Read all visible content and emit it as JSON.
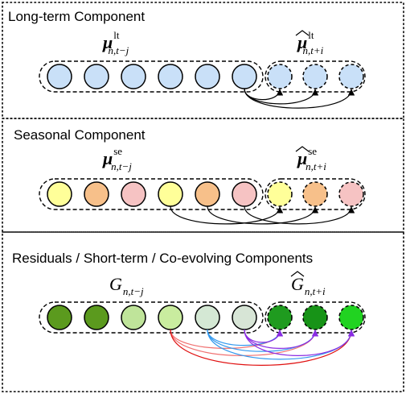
{
  "colors": {
    "long_term_node": "#c9e0f8",
    "seasonal_nodes": [
      "#ffff99",
      "#f7c08a",
      "#f6c3c3"
    ],
    "residual_past": [
      "#5b9a1e",
      "#5b9a1e",
      "#bfe49a",
      "#c9ec9f",
      "#d4e8d4",
      "#d7e5d6"
    ],
    "residual_future": [
      "#1f9b1f",
      "#179317",
      "#21d321"
    ],
    "arc_black": "#000000",
    "arc_red_light": "#f07070",
    "arc_red": "#e01010",
    "arc_blue": "#3399ee",
    "arc_purple": "#8a2be2"
  },
  "panels": [
    {
      "title": "Long-term Component",
      "past_label": {
        "base": "μ",
        "sup": "lt",
        "sub": "n,t−j",
        "hat": false
      },
      "future_label": {
        "base": "μ",
        "sup": "lt",
        "sub": "n,t+i",
        "hat": true
      },
      "past_nodes": 6,
      "future_nodes": 3
    },
    {
      "title": "Seasonal Component",
      "past_label": {
        "base": "μ",
        "sup": "se",
        "sub": "n,t−j",
        "hat": false
      },
      "future_label": {
        "base": "μ",
        "sup": "se",
        "sub": "n,t+i",
        "hat": true
      },
      "past_nodes": 6,
      "future_nodes": 3
    },
    {
      "title": "Residuals / Short-term / Co-evolving Components",
      "past_label": {
        "base": "G",
        "sup": "",
        "sub": "n,t−j",
        "hat": false
      },
      "future_label": {
        "base": "G",
        "sup": "",
        "sub": "n,t+i",
        "hat": true
      },
      "past_nodes": 6,
      "future_nodes": 3
    }
  ]
}
